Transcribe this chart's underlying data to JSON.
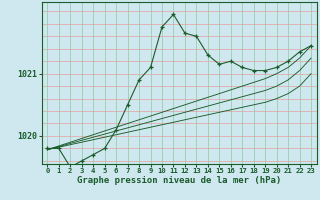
{
  "xlabel": "Graphe pression niveau de la mer (hPa)",
  "background_color": "#cfe8f0",
  "grid_color_h": "#f08080",
  "grid_color_v": "#90c8a0",
  "line_color": "#1a5c2a",
  "hours": [
    0,
    1,
    2,
    3,
    4,
    5,
    6,
    7,
    8,
    9,
    10,
    11,
    12,
    13,
    14,
    15,
    16,
    17,
    18,
    19,
    20,
    21,
    22,
    23
  ],
  "main_series": [
    1019.8,
    1019.8,
    1019.5,
    1019.6,
    1019.7,
    1019.8,
    1020.1,
    1020.5,
    1020.9,
    1021.1,
    1021.75,
    1021.95,
    1021.65,
    1021.6,
    1021.3,
    1021.15,
    1021.2,
    1021.1,
    1021.05,
    1021.05,
    1021.1,
    1021.2,
    1021.35,
    1021.45
  ],
  "trend_series": [
    [
      1019.78,
      1019.82,
      1019.86,
      1019.9,
      1019.94,
      1019.98,
      1020.02,
      1020.06,
      1020.1,
      1020.14,
      1020.18,
      1020.22,
      1020.26,
      1020.3,
      1020.34,
      1020.38,
      1020.42,
      1020.46,
      1020.5,
      1020.54,
      1020.6,
      1020.68,
      1020.8,
      1021.0
    ],
    [
      1019.78,
      1019.83,
      1019.88,
      1019.93,
      1019.98,
      1020.03,
      1020.08,
      1020.13,
      1020.18,
      1020.23,
      1020.28,
      1020.33,
      1020.38,
      1020.43,
      1020.48,
      1020.53,
      1020.58,
      1020.63,
      1020.68,
      1020.73,
      1020.8,
      1020.9,
      1021.05,
      1021.25
    ],
    [
      1019.78,
      1019.84,
      1019.9,
      1019.96,
      1020.02,
      1020.08,
      1020.14,
      1020.2,
      1020.26,
      1020.32,
      1020.38,
      1020.44,
      1020.5,
      1020.56,
      1020.62,
      1020.68,
      1020.74,
      1020.8,
      1020.86,
      1020.92,
      1021.0,
      1021.1,
      1021.25,
      1021.45
    ]
  ],
  "ylim": [
    1019.55,
    1022.15
  ],
  "yticks": [
    1020.0,
    1021.0
  ],
  "ytick_labels": [
    "1020",
    "1021"
  ],
  "xlim": [
    -0.5,
    23.5
  ],
  "xtick_fontsize": 5.2,
  "ytick_fontsize": 6.0,
  "xlabel_fontsize": 6.5
}
